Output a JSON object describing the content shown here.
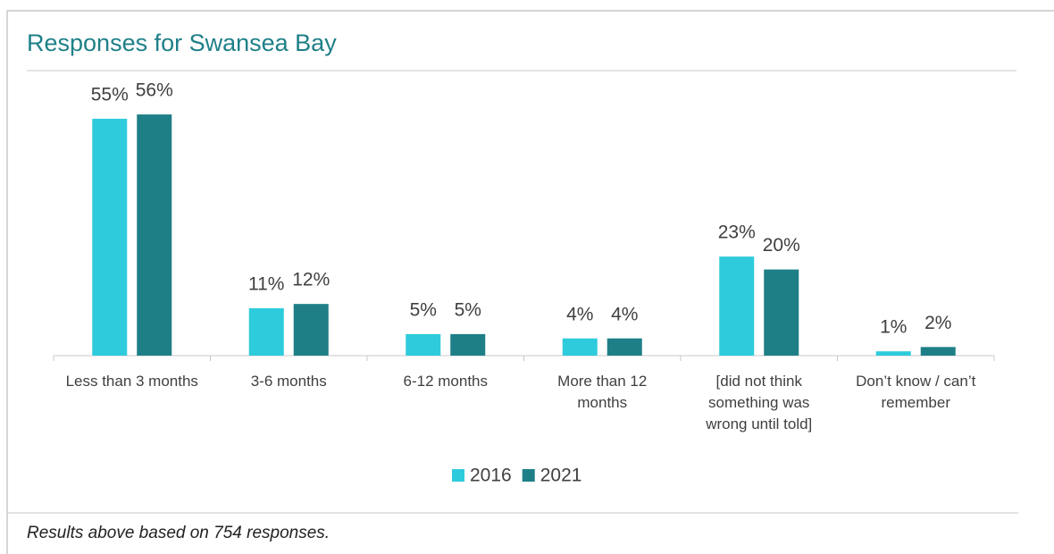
{
  "chart_data": {
    "type": "bar",
    "title": "Responses for Swansea Bay",
    "categories": [
      "Less than 3 months",
      "3-6 months",
      "6-12 months",
      "More than 12 months",
      "[did not think something was wrong until told]",
      "Don’t know / can’t remember"
    ],
    "series": [
      {
        "name": "2016",
        "color": "#2ecbdc",
        "values": [
          55,
          11,
          5,
          4,
          23,
          1
        ],
        "value_labels": [
          "55%",
          "11%",
          "5%",
          "4%",
          "23%",
          "1%"
        ]
      },
      {
        "name": "2021",
        "color": "#1e7f87",
        "values": [
          56,
          12,
          5,
          4,
          20,
          2
        ],
        "value_labels": [
          "56%",
          "12%",
          "5%",
          "4%",
          "20%",
          "2%"
        ]
      }
    ],
    "note": "Results above based on 754 responses."
  }
}
